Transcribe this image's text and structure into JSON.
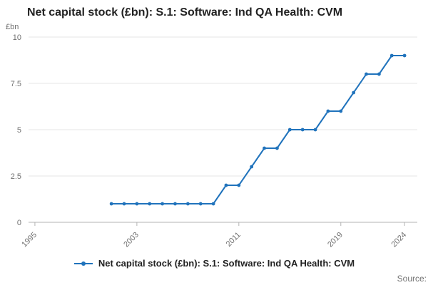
{
  "page": {
    "title": "Net capital stock (£bn): S.1: Software: Ind QA Health: CVM",
    "y_unit_label": "£bn",
    "source_label": "Source:"
  },
  "legend": {
    "label": "Net capital stock (£bn): S.1: Software: Ind QA Health: CVM",
    "marker_icon": "line-with-dot-marker",
    "color": "#2073bc"
  },
  "chart_data": {
    "type": "line",
    "title": "Net capital stock (£bn): S.1: Software: Ind QA Health: CVM",
    "xlabel": "",
    "ylabel": "£bn",
    "x": [
      2001,
      2002,
      2003,
      2004,
      2005,
      2006,
      2007,
      2008,
      2009,
      2010,
      2011,
      2012,
      2013,
      2014,
      2015,
      2016,
      2017,
      2018,
      2019,
      2020,
      2021,
      2022,
      2023,
      2024
    ],
    "series": [
      {
        "name": "Net capital stock (£bn): S.1: Software: Ind QA Health: CVM",
        "values": [
          1,
          1,
          1,
          1,
          1,
          1,
          1,
          1,
          1,
          2,
          2,
          3,
          4,
          4,
          5,
          5,
          5,
          6,
          6,
          7,
          8,
          8,
          9,
          9
        ]
      }
    ],
    "xticks": [
      1995,
      2003,
      2011,
      2019,
      2024
    ],
    "yticks": [
      0,
      2.5,
      5,
      7.5,
      10
    ],
    "xlim": [
      1994.5,
      2025
    ],
    "ylim": [
      0,
      10
    ],
    "grid": true,
    "legend_position": "bottom",
    "line_color": "#2073bc",
    "marker": "circle",
    "colors": {
      "gridline": "#e6e6e6",
      "axis": "#b3b3b3",
      "tick_label": "#707070"
    }
  }
}
